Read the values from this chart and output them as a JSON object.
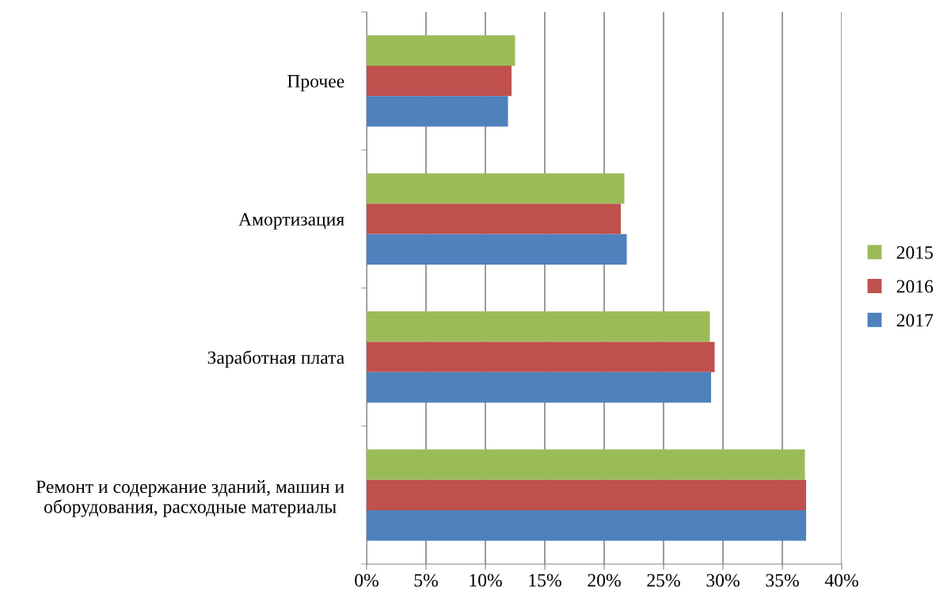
{
  "chart_data": {
    "type": "bar",
    "orientation": "horizontal",
    "categories": [
      "Прочее",
      "Амортизация",
      "Заработная плата",
      "Ремонт и содержание зданий, машин и\nоборудования, расходные материалы"
    ],
    "series": [
      {
        "name": "2015",
        "color": "#9bbb59",
        "values": [
          12.5,
          21.7,
          28.9,
          36.9
        ]
      },
      {
        "name": "2016",
        "color": "#c0504d",
        "values": [
          12.2,
          21.4,
          29.3,
          37.0
        ]
      },
      {
        "name": "2017",
        "color": "#4f81bd",
        "values": [
          11.9,
          21.9,
          29.0,
          37.0
        ]
      }
    ],
    "xlim": [
      0,
      40
    ],
    "xticks": [
      {
        "value": 0,
        "label": "0%"
      },
      {
        "value": 5,
        "label": "5%"
      },
      {
        "value": 10,
        "label": "10%"
      },
      {
        "value": 15,
        "label": "15%"
      },
      {
        "value": 20,
        "label": "20%"
      },
      {
        "value": 25,
        "label": "25%"
      },
      {
        "value": 30,
        "label": "30%"
      },
      {
        "value": 35,
        "label": "35%"
      },
      {
        "value": 40,
        "label": "40%"
      }
    ],
    "grid": "x",
    "legend": "right"
  }
}
